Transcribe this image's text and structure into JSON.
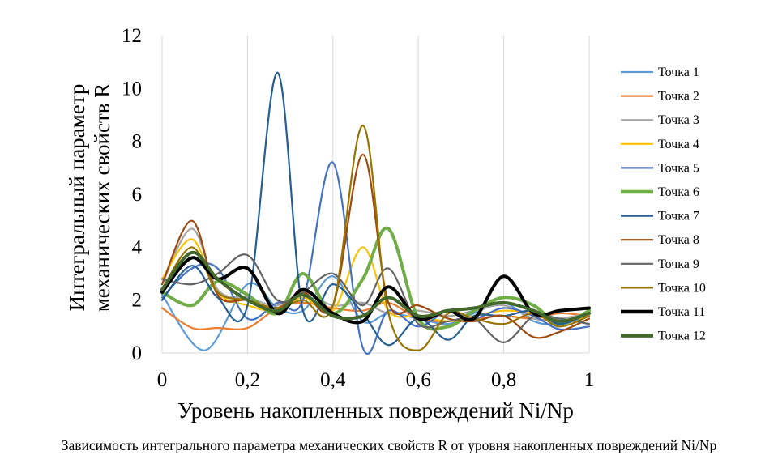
{
  "chart_data": {
    "type": "line",
    "title": "",
    "xlabel": "Уровень накопленных повреждений Ni/Np",
    "ylabel_line1": "Интегральный параметр",
    "ylabel_line2": "механических свойств R",
    "xlim": [
      0,
      1
    ],
    "ylim": [
      0,
      12
    ],
    "x_ticks": [
      0,
      0.2,
      0.4,
      0.6,
      0.8,
      1
    ],
    "x_tick_labels": [
      "0",
      "0,2",
      "0,4",
      "0,6",
      "0,8",
      "1"
    ],
    "y_ticks": [
      0,
      2,
      4,
      6,
      8,
      10,
      12
    ],
    "y_tick_labels": [
      "0",
      "2",
      "4",
      "6",
      "8",
      "10",
      "12"
    ],
    "grid": "vertical",
    "legend_position": "right",
    "series": [
      {
        "name": "Точка 1",
        "color": "#5b9bd5",
        "bold": false,
        "x": [
          0,
          0.1,
          0.2,
          0.27,
          0.33,
          0.4,
          0.47,
          0.53,
          0.6,
          0.67,
          0.73,
          0.8,
          0.87,
          0.93,
          1
        ],
        "y": [
          2.2,
          0.1,
          2.6,
          1.7,
          1.6,
          2.9,
          1.2,
          1.5,
          1.3,
          1.1,
          1.5,
          1.9,
          1.2,
          1.1,
          1.4
        ]
      },
      {
        "name": "Точка 2",
        "color": "#ed7d31",
        "bold": false,
        "x": [
          0,
          0.07,
          0.13,
          0.2,
          0.27,
          0.33,
          0.4,
          0.47,
          0.53,
          0.6,
          0.67,
          0.73,
          0.8,
          0.87,
          0.93,
          1
        ],
        "y": [
          1.7,
          0.95,
          0.95,
          0.95,
          1.7,
          1.9,
          1.7,
          1.6,
          1.9,
          1.3,
          1.2,
          1.3,
          1.4,
          1.3,
          1.5,
          1.4
        ]
      },
      {
        "name": "Точка 3",
        "color": "#a5a5a5",
        "bold": false,
        "x": [
          0,
          0.07,
          0.13,
          0.2,
          0.27,
          0.33,
          0.4,
          0.47,
          0.53,
          0.6,
          0.67,
          0.73,
          0.8,
          0.87,
          0.93,
          1
        ],
        "y": [
          2.6,
          4.7,
          2.4,
          2.1,
          1.8,
          2.3,
          1.8,
          1.9,
          1.5,
          1.6,
          1.4,
          1.6,
          1.8,
          1.3,
          1.3,
          1.5
        ]
      },
      {
        "name": "Точка 4",
        "color": "#ffc000",
        "bold": false,
        "x": [
          0,
          0.07,
          0.13,
          0.2,
          0.27,
          0.33,
          0.4,
          0.47,
          0.53,
          0.6,
          0.67,
          0.73,
          0.8,
          0.87,
          0.93,
          1
        ],
        "y": [
          2.8,
          4.3,
          2.3,
          1.8,
          1.6,
          2.1,
          1.6,
          4.0,
          1.6,
          1.4,
          1.2,
          1.4,
          1.6,
          1.5,
          1.2,
          1.4
        ]
      },
      {
        "name": "Точка 5",
        "color": "#4472c4",
        "bold": false,
        "x": [
          0,
          0.07,
          0.13,
          0.2,
          0.27,
          0.33,
          0.4,
          0.47,
          0.53,
          0.6,
          0.67,
          0.73,
          0.8,
          0.87,
          0.93,
          1
        ],
        "y": [
          2.1,
          3.2,
          3.2,
          1.3,
          1.9,
          2.0,
          7.2,
          0.2,
          1.6,
          1.0,
          1.6,
          1.3,
          1.7,
          1.4,
          0.9,
          1.0
        ]
      },
      {
        "name": "Точка 6",
        "color": "#70ad47",
        "bold": true,
        "x": [
          0,
          0.07,
          0.13,
          0.2,
          0.27,
          0.33,
          0.4,
          0.47,
          0.53,
          0.6,
          0.67,
          0.73,
          0.8,
          0.87,
          0.93,
          1
        ],
        "y": [
          2.3,
          1.8,
          2.7,
          2.2,
          1.5,
          3.0,
          1.5,
          2.8,
          4.7,
          1.3,
          1.0,
          1.6,
          2.1,
          1.8,
          1.1,
          1.6
        ]
      },
      {
        "name": "Точка 7",
        "color": "#255e91",
        "bold": false,
        "x": [
          0,
          0.07,
          0.13,
          0.2,
          0.27,
          0.33,
          0.4,
          0.47,
          0.53,
          0.6,
          0.67,
          0.73,
          0.8,
          0.87,
          0.93,
          1
        ],
        "y": [
          2.0,
          3.3,
          2.1,
          1.8,
          10.6,
          1.6,
          2.6,
          1.5,
          0.3,
          1.3,
          0.5,
          1.4,
          1.4,
          1.6,
          1.1,
          1.5
        ]
      },
      {
        "name": "Точка 8",
        "color": "#9e480e",
        "bold": false,
        "x": [
          0,
          0.07,
          0.13,
          0.2,
          0.27,
          0.33,
          0.4,
          0.47,
          0.53,
          0.6,
          0.67,
          0.73,
          0.8,
          0.87,
          0.93,
          1
        ],
        "y": [
          2.6,
          5.0,
          2.2,
          2.0,
          1.7,
          2.3,
          1.8,
          7.5,
          1.9,
          1.8,
          1.3,
          1.2,
          1.4,
          0.6,
          0.8,
          1.3
        ]
      },
      {
        "name": "Точка 9",
        "color": "#636363",
        "bold": false,
        "x": [
          0,
          0.07,
          0.13,
          0.2,
          0.27,
          0.33,
          0.4,
          0.47,
          0.53,
          0.6,
          0.67,
          0.73,
          0.8,
          0.87,
          0.93,
          1
        ],
        "y": [
          2.8,
          2.6,
          3.0,
          3.7,
          2.0,
          2.3,
          3.0,
          1.8,
          3.2,
          1.1,
          1.2,
          1.3,
          0.4,
          1.4,
          1.3,
          1.1
        ]
      },
      {
        "name": "Точка 10",
        "color": "#997300",
        "bold": false,
        "x": [
          0,
          0.07,
          0.13,
          0.2,
          0.27,
          0.33,
          0.4,
          0.47,
          0.53,
          0.6,
          0.67,
          0.73,
          0.8,
          0.87,
          0.93,
          1
        ],
        "y": [
          2.4,
          4.0,
          2.3,
          2.0,
          1.7,
          2.0,
          1.8,
          8.6,
          1.5,
          0.1,
          1.5,
          1.3,
          1.1,
          1.5,
          1.0,
          1.4
        ]
      },
      {
        "name": "Точка 11",
        "color": "#000000",
        "bold": true,
        "x": [
          0,
          0.07,
          0.13,
          0.2,
          0.27,
          0.33,
          0.4,
          0.47,
          0.53,
          0.6,
          0.67,
          0.73,
          0.8,
          0.87,
          0.93,
          1
        ],
        "y": [
          2.3,
          3.6,
          2.8,
          3.2,
          1.5,
          2.4,
          1.5,
          1.2,
          2.5,
          1.3,
          1.6,
          1.3,
          2.9,
          1.5,
          1.6,
          1.7
        ]
      },
      {
        "name": "Точка 12",
        "color": "#43682b",
        "bold": true,
        "x": [
          0,
          0.07,
          0.13,
          0.2,
          0.27,
          0.33,
          0.4,
          0.47,
          0.53,
          0.6,
          0.67,
          0.73,
          0.8,
          0.87,
          0.93,
          1
        ],
        "y": [
          2.4,
          3.8,
          2.8,
          2.0,
          1.6,
          2.2,
          1.4,
          1.4,
          2.1,
          1.4,
          1.6,
          1.7,
          1.9,
          1.6,
          1.2,
          1.5
        ]
      }
    ]
  },
  "caption": "Зависимость интегрального параметра механических свойств R от уровня накопленных повреждений Ni/Np"
}
